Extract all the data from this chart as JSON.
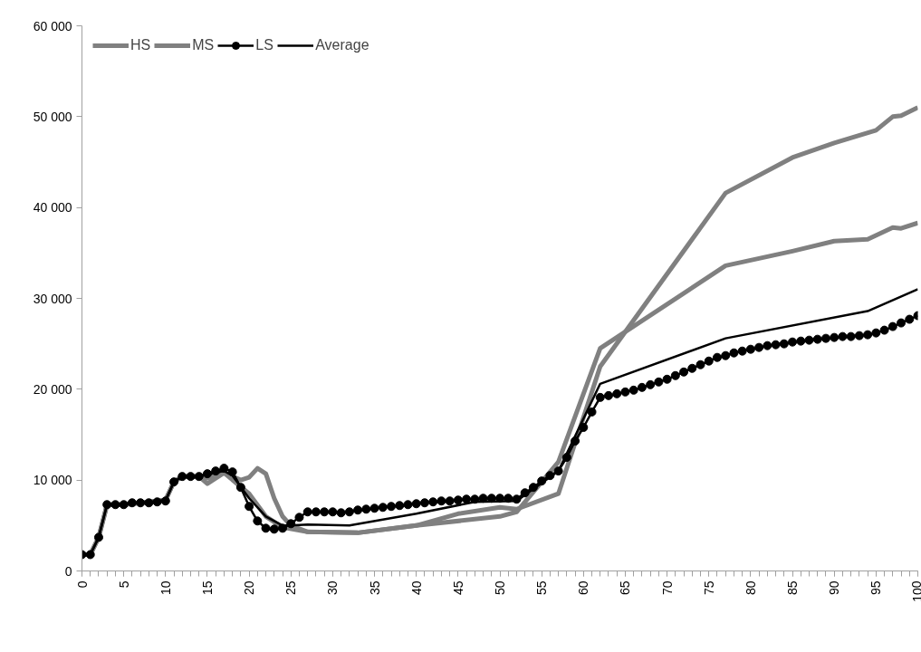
{
  "chart_data": {
    "type": "line",
    "xlim": [
      0,
      100
    ],
    "ylim": [
      0,
      60000
    ],
    "xticks": [
      0,
      5,
      10,
      15,
      20,
      25,
      30,
      35,
      40,
      45,
      50,
      55,
      60,
      65,
      70,
      75,
      80,
      85,
      90,
      95,
      100
    ],
    "yticks": [
      {
        "value": 0,
        "label": "0"
      },
      {
        "value": 10000,
        "label": "10 000"
      },
      {
        "value": 20000,
        "label": "20 000"
      },
      {
        "value": 30000,
        "label": "30 000"
      },
      {
        "value": 40000,
        "label": "40 000"
      },
      {
        "value": 50000,
        "label": "50 000"
      },
      {
        "value": 60000,
        "label": "60 000"
      }
    ],
    "grid": false,
    "legend": "top left",
    "series": [
      {
        "name": "HS",
        "color": "#808080",
        "marker": "none",
        "line_style": "solid",
        "x": [
          0,
          1,
          2,
          3,
          5,
          10,
          11,
          12,
          14,
          15,
          17,
          19,
          20,
          21,
          22,
          23,
          24,
          25,
          27,
          33,
          40,
          45,
          50,
          52,
          57,
          62,
          77,
          85,
          90,
          95,
          97,
          98,
          100
        ],
        "values": [
          1800,
          1800,
          3700,
          7300,
          7300,
          7800,
          9800,
          10400,
          10400,
          9600,
          10800,
          10000,
          10300,
          11300,
          10700,
          8000,
          6000,
          5000,
          4300,
          4200,
          5000,
          6300,
          7000,
          6800,
          8500,
          22500,
          41600,
          45500,
          47100,
          48500,
          50000,
          50100,
          51000
        ]
      },
      {
        "name": "MS",
        "color": "#808080",
        "marker": "none",
        "line_style": "solid",
        "x": [
          0,
          1,
          2,
          3,
          5,
          10,
          11,
          12,
          14,
          15,
          17,
          20,
          22,
          24,
          27,
          33,
          40,
          50,
          52,
          57,
          62,
          77,
          85,
          90,
          94,
          97,
          98,
          100
        ],
        "values": [
          1800,
          1800,
          3700,
          7300,
          7300,
          7800,
          9800,
          10400,
          10400,
          10200,
          10800,
          8500,
          6000,
          4800,
          4300,
          4200,
          5000,
          6000,
          6500,
          12000,
          24500,
          33600,
          35200,
          36300,
          36500,
          37800,
          37700,
          38300
        ]
      },
      {
        "name": "LS",
        "color": "#000000",
        "marker": "circle",
        "line_style": "solid",
        "x": [
          0,
          1,
          2,
          3,
          4,
          5,
          6,
          7,
          8,
          9,
          10,
          11,
          12,
          13,
          14,
          15,
          16,
          17,
          18,
          19,
          20,
          21,
          22,
          23,
          24,
          25,
          26,
          27,
          28,
          29,
          30,
          31,
          32,
          33,
          34,
          35,
          36,
          37,
          38,
          39,
          40,
          41,
          42,
          43,
          44,
          45,
          46,
          47,
          48,
          49,
          50,
          51,
          52,
          53,
          54,
          55,
          56,
          57,
          58,
          59,
          60,
          61,
          62,
          63,
          64,
          65,
          66,
          67,
          68,
          69,
          70,
          71,
          72,
          73,
          74,
          75,
          76,
          77,
          78,
          79,
          80,
          81,
          82,
          83,
          84,
          85,
          86,
          87,
          88,
          89,
          90,
          91,
          92,
          93,
          94,
          95,
          96,
          97,
          98,
          99,
          100
        ],
        "values": [
          1800,
          1800,
          3700,
          7300,
          7300,
          7300,
          7500,
          7500,
          7500,
          7600,
          7700,
          9800,
          10400,
          10400,
          10400,
          10700,
          11000,
          11300,
          10900,
          9200,
          7100,
          5500,
          4700,
          4600,
          4700,
          5200,
          5900,
          6500,
          6500,
          6500,
          6500,
          6400,
          6500,
          6700,
          6800,
          6900,
          7000,
          7100,
          7200,
          7300,
          7400,
          7500,
          7600,
          7700,
          7700,
          7800,
          7900,
          7900,
          8000,
          8000,
          8000,
          8000,
          7900,
          8600,
          9200,
          9900,
          10500,
          11000,
          12500,
          14300,
          15800,
          17500,
          19100,
          19300,
          19500,
          19700,
          19900,
          20200,
          20500,
          20800,
          21100,
          21500,
          21900,
          22300,
          22700,
          23100,
          23500,
          23700,
          24000,
          24200,
          24400,
          24600,
          24800,
          24900,
          25000,
          25200,
          25300,
          25400,
          25500,
          25600,
          25700,
          25800,
          25800,
          25900,
          26000,
          26200,
          26500,
          26900,
          27300,
          27700,
          28100
        ]
      },
      {
        "name": "Average",
        "color": "#000000",
        "marker": "none",
        "line_style": "solid",
        "x": [
          0,
          1,
          2,
          3,
          5,
          10,
          11,
          12,
          14,
          17,
          18,
          20,
          22,
          24,
          25,
          27,
          32,
          40,
          47,
          52,
          57,
          62,
          77,
          94,
          100
        ],
        "values": [
          1800,
          1800,
          3700,
          7300,
          7300,
          7800,
          9800,
          10400,
          10400,
          11000,
          10500,
          8000,
          6000,
          5000,
          5000,
          5100,
          5000,
          6300,
          7600,
          7700,
          11000,
          20600,
          25600,
          28600,
          31000
        ]
      }
    ]
  }
}
